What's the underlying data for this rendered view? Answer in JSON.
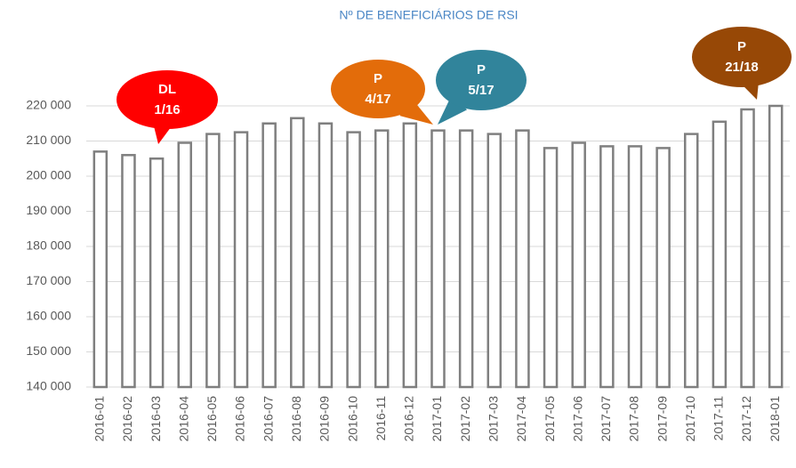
{
  "chart_data": {
    "type": "bar",
    "title": "Nº DE BENEFICIÁRIOS DE RSI",
    "categories": [
      "2016-01",
      "2016-02",
      "2016-03",
      "2016-04",
      "2016-05",
      "2016-06",
      "2016-07",
      "2016-08",
      "2016-09",
      "2016-10",
      "2016-11",
      "2016-12",
      "2017-01",
      "2017-02",
      "2017-03",
      "2017-04",
      "2017-05",
      "2017-06",
      "2017-07",
      "2017-08",
      "2017-09",
      "2017-10",
      "2017-11",
      "2017-12",
      "2018-01"
    ],
    "values": [
      207000,
      206000,
      205000,
      209500,
      212000,
      212500,
      215000,
      216500,
      215000,
      212500,
      213000,
      215000,
      213000,
      213000,
      212000,
      213000,
      208000,
      209500,
      208500,
      208500,
      208000,
      212000,
      215500,
      219000,
      220000
    ],
    "color": "#7f7f7f",
    "ylim": [
      140000,
      220000
    ],
    "yticks": [
      {
        "value": 140000,
        "label": "140 000"
      },
      {
        "value": 150000,
        "label": "150 000"
      },
      {
        "value": 160000,
        "label": "160 000"
      },
      {
        "value": 170000,
        "label": "170 000"
      },
      {
        "value": 180000,
        "label": "180 000"
      },
      {
        "value": 190000,
        "label": "190 000"
      },
      {
        "value": 200000,
        "label": "200 000"
      },
      {
        "value": 210000,
        "label": "210 000"
      },
      {
        "value": 220000,
        "label": "220 000"
      }
    ],
    "grid": true,
    "annotations": [
      {
        "lines": [
          "DL",
          "1/16"
        ],
        "color": "#ff0000"
      },
      {
        "lines": [
          "P",
          "4/17"
        ],
        "color": "#e36c0a"
      },
      {
        "lines": [
          "P",
          "5/17"
        ],
        "color": "#31849b"
      },
      {
        "lines": [
          "P",
          "21/18"
        ],
        "color": "#974806"
      }
    ]
  }
}
